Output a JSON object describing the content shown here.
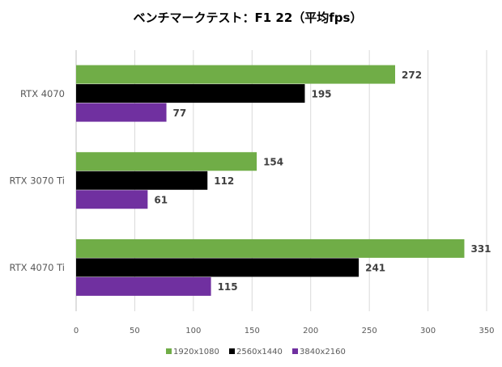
{
  "chart_data": {
    "type": "bar",
    "orientation": "horizontal",
    "title": "ベンチマークテスト：F1 22（平均fps）",
    "categories": [
      "RTX 4070",
      "RTX 3070 Ti",
      "RTX 4070 Ti"
    ],
    "series": [
      {
        "name": "1920x1080",
        "color": "#70AD47",
        "values": [
          272,
          154,
          331
        ]
      },
      {
        "name": "2560x1440",
        "color": "#000000",
        "values": [
          195,
          112,
          241
        ]
      },
      {
        "name": "3840x2160",
        "color": "#7030A0",
        "values": [
          77,
          61,
          115
        ]
      }
    ],
    "xlim": [
      0,
      350
    ],
    "xticks": [
      0,
      50,
      100,
      150,
      200,
      250,
      300,
      350
    ],
    "grid": true,
    "legend": "bottom",
    "xlabel": "",
    "ylabel": ""
  }
}
